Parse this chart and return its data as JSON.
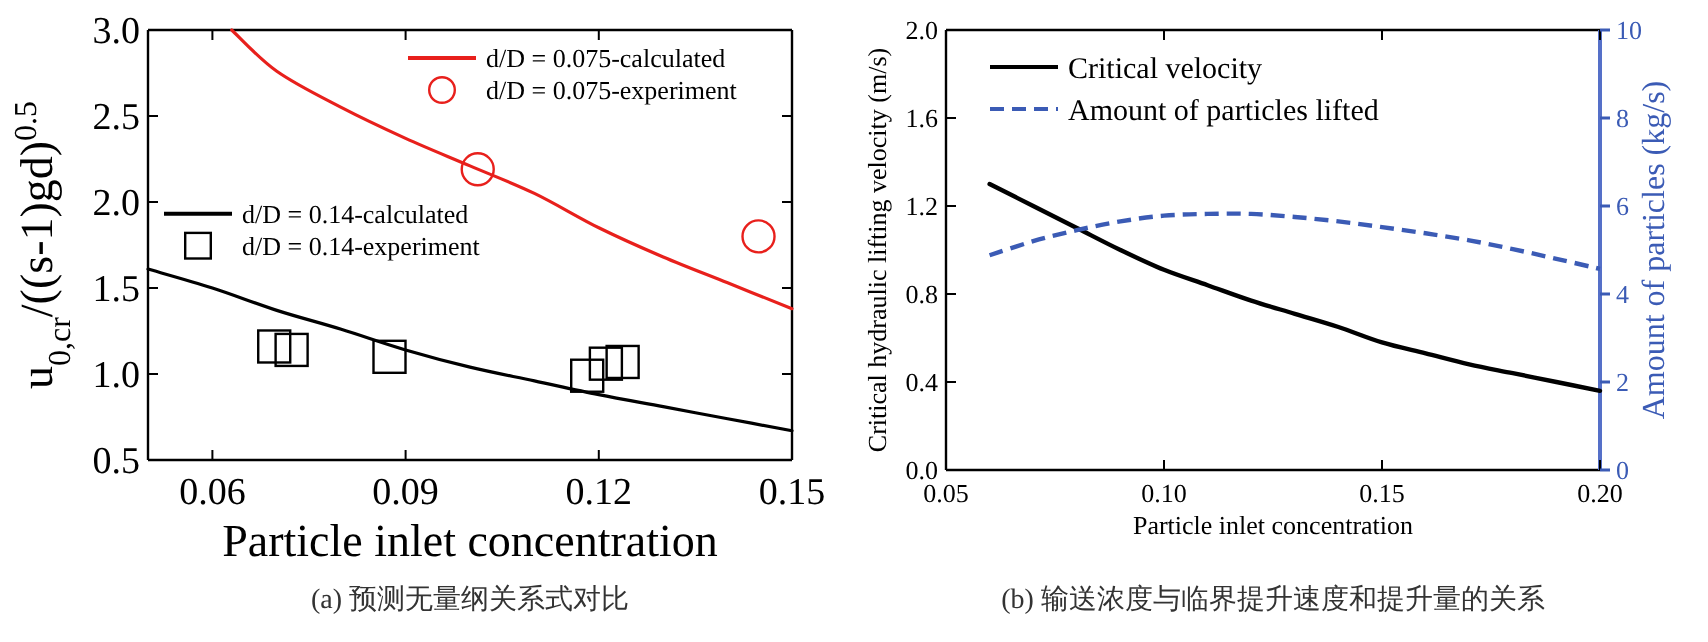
{
  "chart_data": [
    {
      "type": "line",
      "xlabel": "Particle inlet concentration",
      "ylabel": "u$_{0,cr}$/((s-1)gd)$^{0.5}$",
      "xlim": [
        0.05,
        0.15
      ],
      "ylim": [
        0.5,
        3.0
      ],
      "xticks": [
        0.06,
        0.09,
        0.12,
        0.15
      ],
      "yticks": [
        {
          "value": 0.5,
          "label": "0.5"
        },
        {
          "value": 1.0,
          "label": "1.0"
        },
        {
          "value": 1.5,
          "label": "1.5"
        },
        {
          "value": 2.0,
          "label": "2.0"
        },
        {
          "value": 2.5,
          "label": "2.5"
        },
        {
          "value": 3.0,
          "label": "3.0"
        }
      ],
      "legend": "top right",
      "annotations": [
        "(a) 预测无量纲关系式对比"
      ],
      "series": [
        {
          "name": "d/D = 0.075-calculated",
          "color": "#e8201c",
          "x": [
            0.063,
            0.07,
            0.08,
            0.09,
            0.1,
            0.11,
            0.12,
            0.13,
            0.14,
            0.15
          ],
          "values": [
            3.0,
            2.76,
            2.55,
            2.37,
            2.21,
            2.05,
            1.85,
            1.68,
            1.53,
            1.38
          ]
        },
        {
          "name": "d/D = 0.075-experiment",
          "type": "scatter",
          "marker": "circle",
          "color": "#e8201c",
          "x": [
            0.1012,
            0.1448
          ],
          "values": [
            2.19,
            1.8
          ]
        },
        {
          "name": "d/D = 0.14-calculated",
          "color": "#000000",
          "x": [
            0.05,
            0.06,
            0.07,
            0.08,
            0.09,
            0.1,
            0.11,
            0.12,
            0.13,
            0.14,
            0.15
          ],
          "values": [
            1.61,
            1.5,
            1.37,
            1.26,
            1.14,
            1.04,
            0.96,
            0.88,
            0.81,
            0.74,
            0.67
          ]
        },
        {
          "name": "d/D = 0.14-experiment",
          "type": "scatter",
          "marker": "square",
          "color": "#000000",
          "x": [
            0.0696,
            0.0723,
            0.0875,
            0.1182,
            0.1211,
            0.1237
          ],
          "values": [
            1.16,
            1.14,
            1.1,
            0.99,
            1.06,
            1.07
          ]
        }
      ]
    },
    {
      "type": "line",
      "xlabel": "Particle inlet concentration",
      "ylabel": "Critical hydraulic lifting velocity (m/s)",
      "y2label": "Amount of particles (kg/s)",
      "xlim": [
        0.05,
        0.2
      ],
      "ylim": [
        0,
        2.0
      ],
      "y2lim": [
        0,
        10
      ],
      "xticks": [
        {
          "value": 0.05,
          "label": "0.05"
        },
        {
          "value": 0.1,
          "label": "0.10"
        },
        {
          "value": 0.15,
          "label": "0.15"
        },
        {
          "value": 0.2,
          "label": "0.20"
        }
      ],
      "yticks": [
        {
          "value": 0,
          "label": "0.0"
        },
        {
          "value": 0.4,
          "label": "0.4"
        },
        {
          "value": 0.8,
          "label": "0.8"
        },
        {
          "value": 1.2,
          "label": "1.2"
        },
        {
          "value": 1.6,
          "label": "1.6"
        },
        {
          "value": 2.0,
          "label": "2.0"
        }
      ],
      "y2ticks": [
        0,
        2,
        4,
        6,
        8,
        10
      ],
      "legend": "top left",
      "annotations": [
        "(b) 输送浓度与临界提升速度和提升量的关系"
      ],
      "series": [
        {
          "name": "Critical velocity",
          "line_style": "solid",
          "color": "#000000",
          "x": [
            0.06,
            0.07,
            0.08,
            0.09,
            0.1,
            0.11,
            0.12,
            0.13,
            0.14,
            0.15,
            0.16,
            0.17,
            0.18,
            0.19,
            0.2
          ],
          "values": [
            1.3,
            1.2,
            1.1,
            1.0,
            0.91,
            0.84,
            0.77,
            0.71,
            0.65,
            0.58,
            0.53,
            0.48,
            0.44,
            0.4,
            0.36
          ]
        },
        {
          "name": "Amount of particles lifted",
          "line_style": "dashed",
          "axis": "y2",
          "color": "#3b5bb5",
          "x": [
            0.06,
            0.07,
            0.08,
            0.09,
            0.1,
            0.11,
            0.12,
            0.13,
            0.14,
            0.15,
            0.16,
            0.17,
            0.18,
            0.19,
            0.2
          ],
          "values": [
            4.88,
            5.2,
            5.45,
            5.65,
            5.78,
            5.82,
            5.82,
            5.75,
            5.65,
            5.52,
            5.38,
            5.22,
            5.02,
            4.8,
            4.57
          ]
        }
      ]
    }
  ]
}
